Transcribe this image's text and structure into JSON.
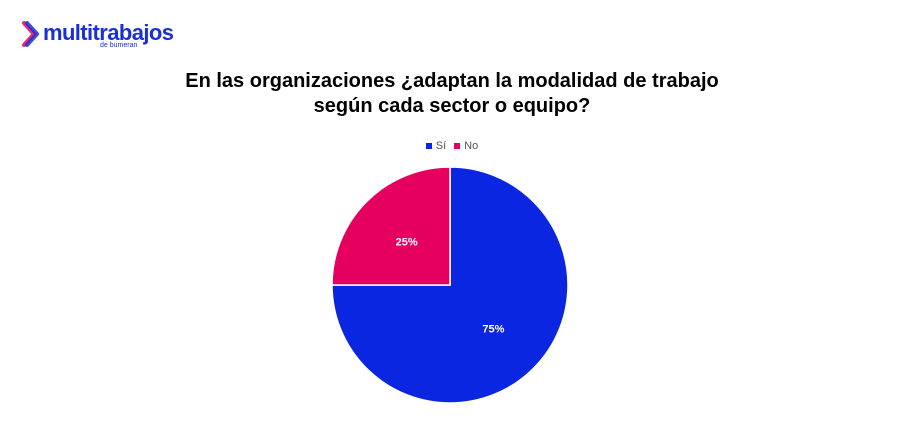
{
  "brand": {
    "name": "multitrabajos",
    "tagline": "de bumeran",
    "color": "#1a2fd6",
    "accent": "#e8005a"
  },
  "chart_data": {
    "type": "pie",
    "title_lines": [
      "En las organizaciones ¿adaptan la modalidad de trabajo",
      "según cada sector o equipo?"
    ],
    "categories": [
      "Sí",
      "No"
    ],
    "values": [
      75,
      25
    ],
    "labels": [
      "75%",
      "25%"
    ],
    "colors": [
      "#0a26e0",
      "#e5005f"
    ],
    "legend_position": "top"
  }
}
